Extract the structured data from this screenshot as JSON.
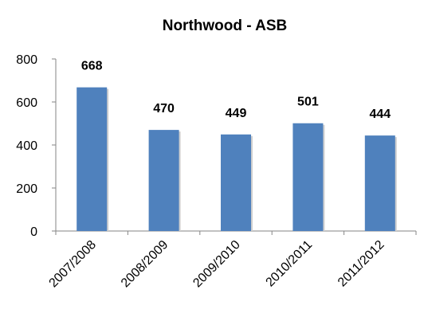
{
  "chart_data": {
    "type": "bar",
    "title": "Northwood - ASB",
    "xlabel": "",
    "ylabel": "",
    "categories": [
      "2007/2008",
      "2008/2009",
      "2009/2010",
      "2010/2011",
      "2011/2012"
    ],
    "values": [
      668,
      470,
      449,
      501,
      444
    ],
    "data_labels": [
      "668",
      "470",
      "449",
      "501",
      "444"
    ],
    "ylim": [
      0,
      800
    ],
    "yticks": [
      0,
      200,
      400,
      600,
      800
    ],
    "ytick_labels": [
      "0",
      "200",
      "400",
      "600",
      "800"
    ],
    "grid": false,
    "legend": "none",
    "bar_color": "#4f81bd"
  }
}
